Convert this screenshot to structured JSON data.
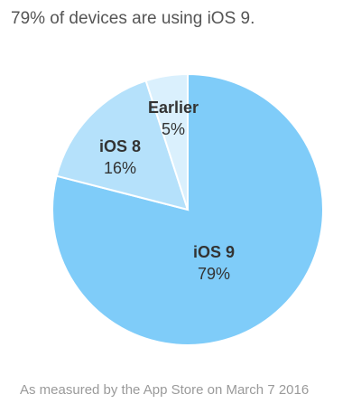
{
  "chart_data": {
    "type": "pie",
    "title": "79% of devices are using iOS 9.",
    "note": "As measured by the App Store on March 7 2016",
    "categories": [
      "iOS 9",
      "iOS 8",
      "Earlier"
    ],
    "values": [
      79,
      16,
      5
    ],
    "value_labels": [
      "79%",
      "16%",
      "5%"
    ],
    "colors": [
      "#7fccf9",
      "#b5e1fb",
      "#daf0fd"
    ]
  }
}
